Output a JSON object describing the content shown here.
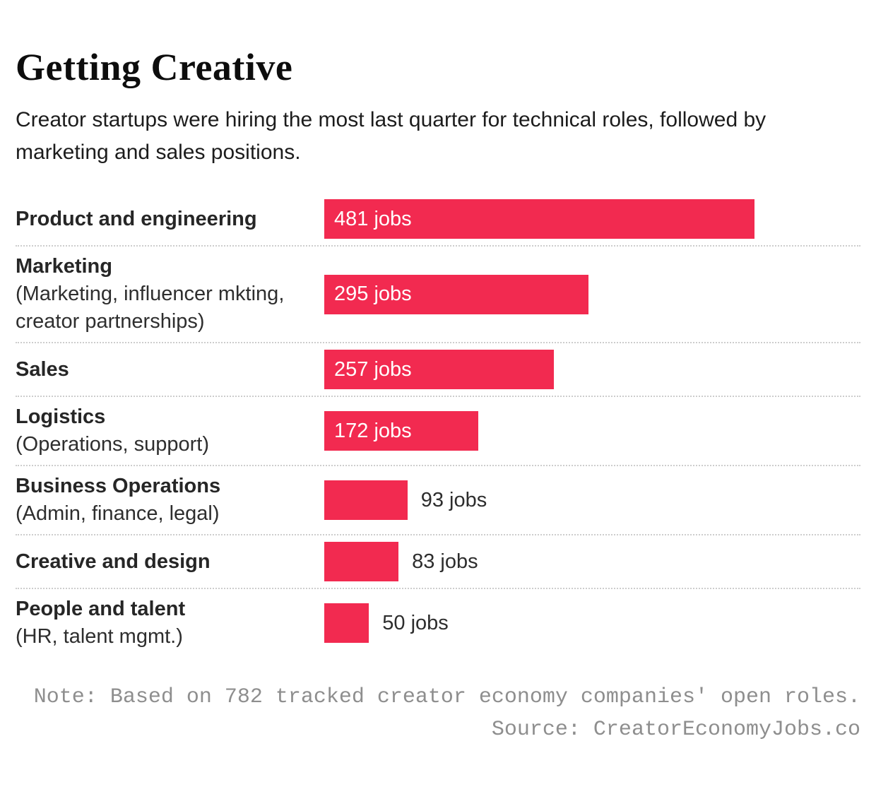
{
  "header": {
    "title": "Getting Creative",
    "subtitle": "Creator startups were hiring the most last quarter for technical roles, followed by marketing and sales positions."
  },
  "chart_data": {
    "type": "bar",
    "orientation": "horizontal",
    "title": "Getting Creative",
    "xlabel": "",
    "ylabel": "",
    "unit": "jobs",
    "bar_color": "#f22a50",
    "xlim": [
      0,
      481
    ],
    "grid": false,
    "legend": "none",
    "categories": [
      "Product and engineering",
      "Marketing",
      "Sales",
      "Logistics",
      "Business Operations",
      "Creative and design",
      "People and talent"
    ],
    "sublabels": [
      "",
      "(Marketing, influencer mkting, creator partnerships)",
      "",
      "(Operations, support)",
      "(Admin, finance, legal)",
      "",
      "(HR, talent mgmt.)"
    ],
    "values": [
      481,
      295,
      257,
      172,
      93,
      83,
      50
    ],
    "value_labels": [
      "481 jobs",
      "295 jobs",
      "257 jobs",
      "172 jobs",
      "93 jobs",
      "83 jobs",
      "50 jobs"
    ]
  },
  "footer": {
    "note": "Note: Based on 782 tracked creator economy companies' open roles.",
    "source": "Source: CreatorEconomyJobs.co"
  }
}
